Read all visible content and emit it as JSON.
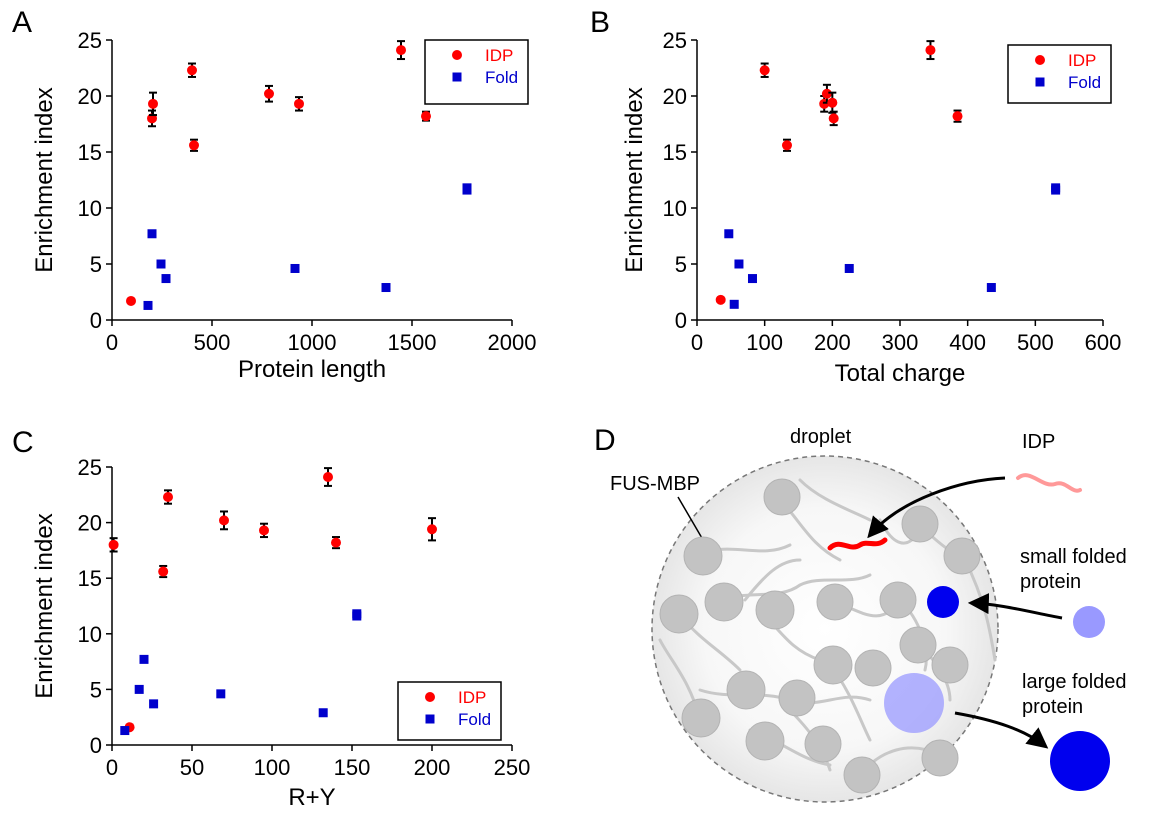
{
  "chart_data": [
    {
      "panel": "A",
      "type": "scatter",
      "xlabel": "Protein length",
      "ylabel": "Enrichment index",
      "xlim": [
        0,
        2000
      ],
      "ylim": [
        0,
        25
      ],
      "xticks": [
        0,
        500,
        1000,
        1500,
        2000
      ],
      "yticks": [
        0,
        5,
        10,
        15,
        20,
        25
      ],
      "legend": {
        "position": "top-right"
      },
      "series": [
        {
          "name": "IDP",
          "color": "#ff0000",
          "marker": "circle",
          "points": [
            {
              "x": 95,
              "y": 1.7,
              "err": 0
            },
            {
              "x": 200,
              "y": 18.0,
              "err": 0.7
            },
            {
              "x": 205,
              "y": 19.3,
              "err": 1.0
            },
            {
              "x": 400,
              "y": 22.3,
              "err": 0.6
            },
            {
              "x": 410,
              "y": 15.6,
              "err": 0.5
            },
            {
              "x": 785,
              "y": 20.2,
              "err": 0.7
            },
            {
              "x": 935,
              "y": 19.3,
              "err": 0.6
            },
            {
              "x": 1445,
              "y": 24.1,
              "err": 0.8
            },
            {
              "x": 1570,
              "y": 18.2,
              "err": 0.4
            }
          ]
        },
        {
          "name": "Fold",
          "color": "#0000cc",
          "marker": "square",
          "points": [
            {
              "x": 180,
              "y": 1.3
            },
            {
              "x": 200,
              "y": 7.7
            },
            {
              "x": 245,
              "y": 5.0
            },
            {
              "x": 270,
              "y": 3.7
            },
            {
              "x": 915,
              "y": 4.6
            },
            {
              "x": 1370,
              "y": 2.9
            },
            {
              "x": 1775,
              "y": 11.6
            },
            {
              "x": 1775,
              "y": 11.8
            }
          ]
        }
      ]
    },
    {
      "panel": "B",
      "type": "scatter",
      "xlabel": "Total charge",
      "ylabel": "Enrichment index",
      "xlim": [
        0,
        600
      ],
      "ylim": [
        0,
        25
      ],
      "xticks": [
        0,
        100,
        200,
        300,
        400,
        500,
        600
      ],
      "yticks": [
        0,
        5,
        10,
        15,
        20,
        25
      ],
      "legend": {
        "position": "top-right"
      },
      "series": [
        {
          "name": "IDP",
          "color": "#ff0000",
          "marker": "circle",
          "points": [
            {
              "x": 35,
              "y": 1.8,
              "err": 0
            },
            {
              "x": 100,
              "y": 22.3,
              "err": 0.6
            },
            {
              "x": 133,
              "y": 15.6,
              "err": 0.5
            },
            {
              "x": 188,
              "y": 19.3,
              "err": 0.7
            },
            {
              "x": 192,
              "y": 20.2,
              "err": 0.8
            },
            {
              "x": 200,
              "y": 19.4,
              "err": 0.9
            },
            {
              "x": 202,
              "y": 18.0,
              "err": 0.6
            },
            {
              "x": 345,
              "y": 24.1,
              "err": 0.8
            },
            {
              "x": 385,
              "y": 18.2,
              "err": 0.5
            }
          ]
        },
        {
          "name": "Fold",
          "color": "#0000cc",
          "marker": "square",
          "points": [
            {
              "x": 47,
              "y": 7.7
            },
            {
              "x": 55,
              "y": 1.4
            },
            {
              "x": 62,
              "y": 5.0
            },
            {
              "x": 82,
              "y": 3.7
            },
            {
              "x": 225,
              "y": 4.6
            },
            {
              "x": 435,
              "y": 2.9
            },
            {
              "x": 530,
              "y": 11.6
            },
            {
              "x": 530,
              "y": 11.8
            }
          ]
        }
      ]
    },
    {
      "panel": "C",
      "type": "scatter",
      "xlabel": "R+Y",
      "ylabel": "Enrichment index",
      "xlim": [
        0,
        250
      ],
      "ylim": [
        0,
        25
      ],
      "xticks": [
        0,
        50,
        100,
        150,
        200,
        250
      ],
      "yticks": [
        0,
        5,
        10,
        15,
        20,
        25
      ],
      "legend": {
        "position": "bottom-right"
      },
      "series": [
        {
          "name": "IDP",
          "color": "#ff0000",
          "marker": "circle",
          "points": [
            {
              "x": 1,
              "y": 18.0,
              "err": 0.6
            },
            {
              "x": 11,
              "y": 1.6,
              "err": 0
            },
            {
              "x": 32,
              "y": 15.6,
              "err": 0.5
            },
            {
              "x": 35,
              "y": 22.3,
              "err": 0.6
            },
            {
              "x": 70,
              "y": 20.2,
              "err": 0.8
            },
            {
              "x": 95,
              "y": 19.3,
              "err": 0.6
            },
            {
              "x": 135,
              "y": 24.1,
              "err": 0.8
            },
            {
              "x": 140,
              "y": 18.2,
              "err": 0.5
            },
            {
              "x": 200,
              "y": 19.4,
              "err": 1.0
            }
          ]
        },
        {
          "name": "Fold",
          "color": "#0000cc",
          "marker": "square",
          "points": [
            {
              "x": 8,
              "y": 1.3
            },
            {
              "x": 17,
              "y": 5.0
            },
            {
              "x": 20,
              "y": 7.7
            },
            {
              "x": 26,
              "y": 3.7
            },
            {
              "x": 68,
              "y": 4.6
            },
            {
              "x": 132,
              "y": 2.9
            },
            {
              "x": 153,
              "y": 11.6
            },
            {
              "x": 153,
              "y": 11.8
            }
          ]
        }
      ]
    }
  ],
  "schematic": {
    "panel": "D",
    "labels": {
      "droplet": "droplet",
      "fus_mbp": "FUS-MBP",
      "idp": "IDP",
      "small_line1": "small folded",
      "small_line2": "protein",
      "large_line1": "large folded",
      "large_line2": "protein"
    },
    "colors": {
      "idp_inside": "#ff0000",
      "idp_outside": "#ff9999",
      "folded": "#0000ee",
      "folded_light": "#9999ff",
      "network": "#c8c8c8"
    }
  }
}
